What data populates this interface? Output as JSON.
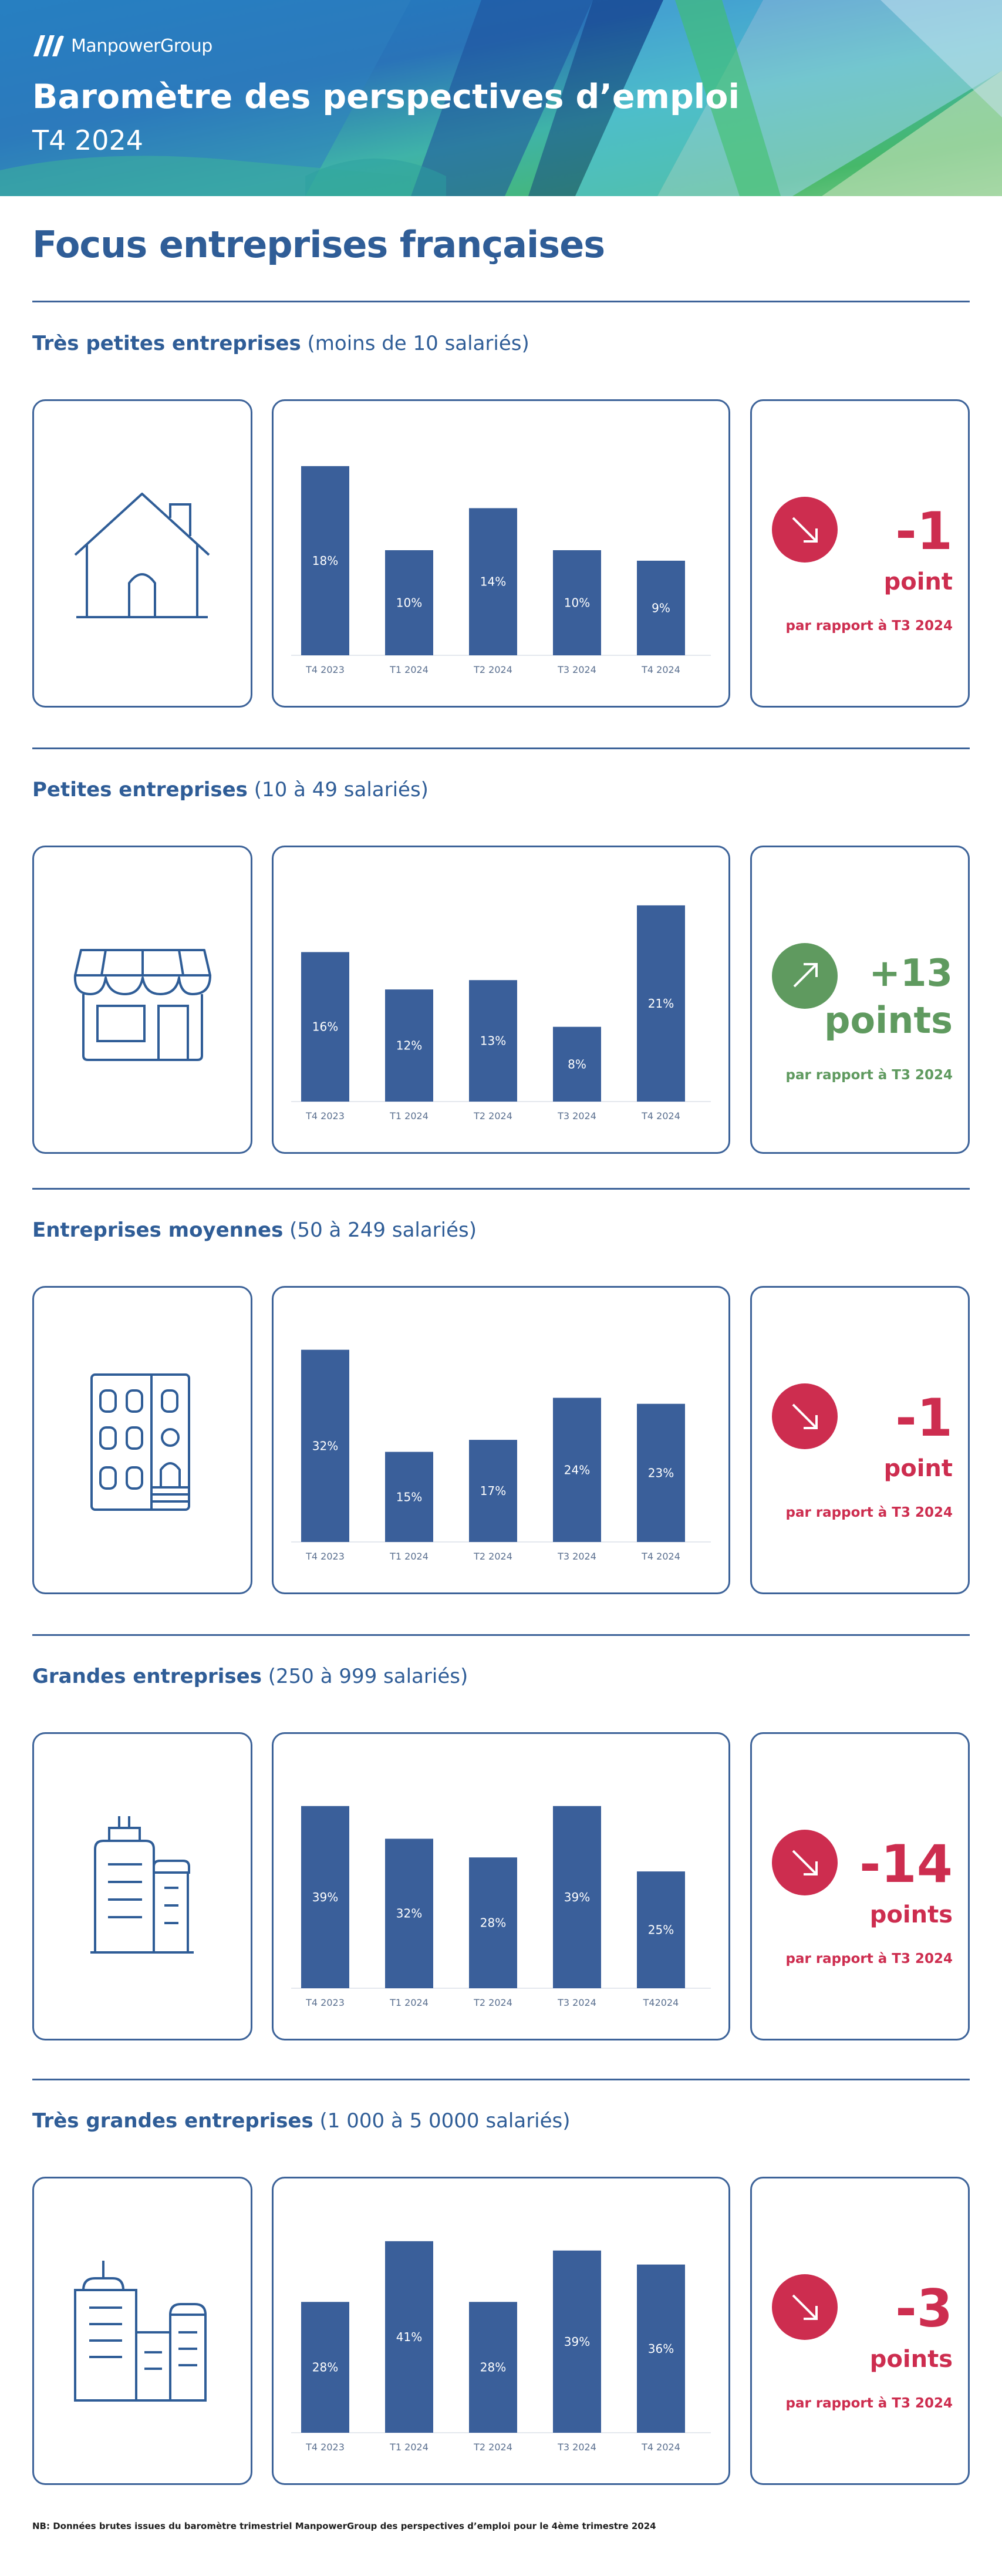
{
  "brand": {
    "logo_text": "ManpowerGroup"
  },
  "header": {
    "title": "Baromètre des perspectives d’emploi",
    "subtitle": "T4 2024"
  },
  "page_heading": "Focus entreprises françaises",
  "colors": {
    "primary": "#3a5f9a",
    "negative": "#cd2d4f",
    "positive": "#5f9a5f"
  },
  "chart_data": [
    {
      "type": "bar",
      "title": "",
      "xlabel": "",
      "ylabel": "",
      "categories": [
        "T4 2023",
        "T1 2024",
        "T2 2024",
        "T3 2024",
        "T4 2024"
      ],
      "values": [
        18,
        10,
        14,
        10,
        9
      ],
      "data_labels": [
        "18%",
        "10%",
        "14%",
        "10%",
        "9%"
      ],
      "ylim": [
        0,
        20
      ],
      "grid": false,
      "legend": "none"
    },
    {
      "type": "bar",
      "title": "",
      "xlabel": "",
      "ylabel": "",
      "categories": [
        "T4 2023",
        "T1 2024",
        "T2 2024",
        "T3 2024",
        "T4 2024"
      ],
      "values": [
        16,
        12,
        13,
        8,
        21
      ],
      "data_labels": [
        "16%",
        "12%",
        "13%",
        "8%",
        "21%"
      ],
      "ylim": [
        0,
        22.5
      ],
      "grid": false,
      "legend": "none"
    },
    {
      "type": "bar",
      "title": "",
      "xlabel": "",
      "ylabel": "",
      "categories": [
        "T4 2023",
        "T1 2024",
        "T2 2024",
        "T3 2024",
        "T4 2024"
      ],
      "values": [
        32,
        15,
        17,
        24,
        23
      ],
      "data_labels": [
        "32%",
        "15%",
        "17%",
        "24%",
        "23%"
      ],
      "ylim": [
        0,
        35
      ],
      "grid": false,
      "legend": "none"
    },
    {
      "type": "bar",
      "title": "",
      "xlabel": "",
      "ylabel": "",
      "categories": [
        "T4 2023",
        "T1 2024",
        "T2 2024",
        "T3 2024",
        "T42024"
      ],
      "values": [
        39,
        32,
        28,
        39,
        25
      ],
      "data_labels": [
        "39%",
        "32%",
        "28%",
        "39%",
        "25%"
      ],
      "ylim": [
        0,
        45
      ],
      "grid": false,
      "legend": "none"
    },
    {
      "type": "bar",
      "title": "",
      "xlabel": "",
      "ylabel": "",
      "categories": [
        "T4 2023",
        "T1 2024",
        "T2 2024",
        "T3 2024",
        "T4 2024"
      ],
      "values": [
        28,
        41,
        28,
        39,
        36
      ],
      "data_labels": [
        "28%",
        "41%",
        "28%",
        "39%",
        "36%"
      ],
      "ylim": [
        0,
        45
      ],
      "grid": false,
      "legend": "none"
    }
  ],
  "sections": [
    {
      "title_strong": "Très petites entreprises",
      "title_rest": " (moins de 10 salariés)",
      "icon": "house-icon",
      "trend": "down",
      "change_value": "-1",
      "change_unit": "point",
      "change_ref": "par rapport à T3 2024"
    },
    {
      "title_strong": "Petites entreprises",
      "title_rest": " (10 à 49 salariés)",
      "icon": "shop-icon",
      "trend": "up",
      "change_value": "+13",
      "change_unit": "points",
      "change_ref": "par rapport à T3 2024"
    },
    {
      "title_strong": "Entreprises moyennes",
      "title_rest": " (50 à 249 salariés)",
      "icon": "apartment-building-icon",
      "trend": "down",
      "change_value": "-1",
      "change_unit": "point",
      "change_ref": "par rapport à T3 2024"
    },
    {
      "title_strong": "Grandes entreprises",
      "title_rest": " (250 à 999 salariés)",
      "icon": "office-towers-icon",
      "trend": "down",
      "change_value": "-14",
      "change_unit": "points",
      "change_ref": "par rapport à T3 2024"
    },
    {
      "title_strong": "Très grandes entreprises",
      "title_rest": " (1 000 à 5 0000 salariés)",
      "icon": "corporate-complex-icon",
      "trend": "down",
      "change_value": "-3",
      "change_unit": "points",
      "change_ref": "par rapport à T3 2024"
    }
  ],
  "footnote": "NB: Données brutes issues du baromètre trimestriel ManpowerGroup des perspectives d’emploi pour le 4ème trimestre 2024"
}
